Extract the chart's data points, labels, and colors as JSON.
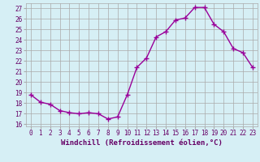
{
  "x": [
    0,
    1,
    2,
    3,
    4,
    5,
    6,
    7,
    8,
    9,
    10,
    11,
    12,
    13,
    14,
    15,
    16,
    17,
    18,
    19,
    20,
    21,
    22,
    23
  ],
  "y": [
    18.8,
    18.1,
    17.9,
    17.3,
    17.1,
    17.0,
    17.1,
    17.0,
    16.5,
    16.7,
    18.8,
    21.4,
    22.3,
    24.3,
    24.8,
    25.9,
    26.1,
    27.1,
    27.1,
    25.5,
    24.8,
    23.2,
    22.8,
    21.4
  ],
  "line_color": "#990099",
  "marker": "+",
  "markersize": 4,
  "linewidth": 1.0,
  "xlabel": "Windchill (Refroidissement éolien,°C)",
  "xlabel_fontsize": 6.5,
  "ylabel_ticks": [
    16,
    17,
    18,
    19,
    20,
    21,
    22,
    23,
    24,
    25,
    26,
    27
  ],
  "xlim": [
    -0.5,
    23.5
  ],
  "ylim": [
    15.8,
    27.5
  ],
  "background_color": "#d6eff5",
  "grid_color": "#aaaaaa",
  "tick_label_color": "#660066",
  "tick_fontsize": 5.5
}
